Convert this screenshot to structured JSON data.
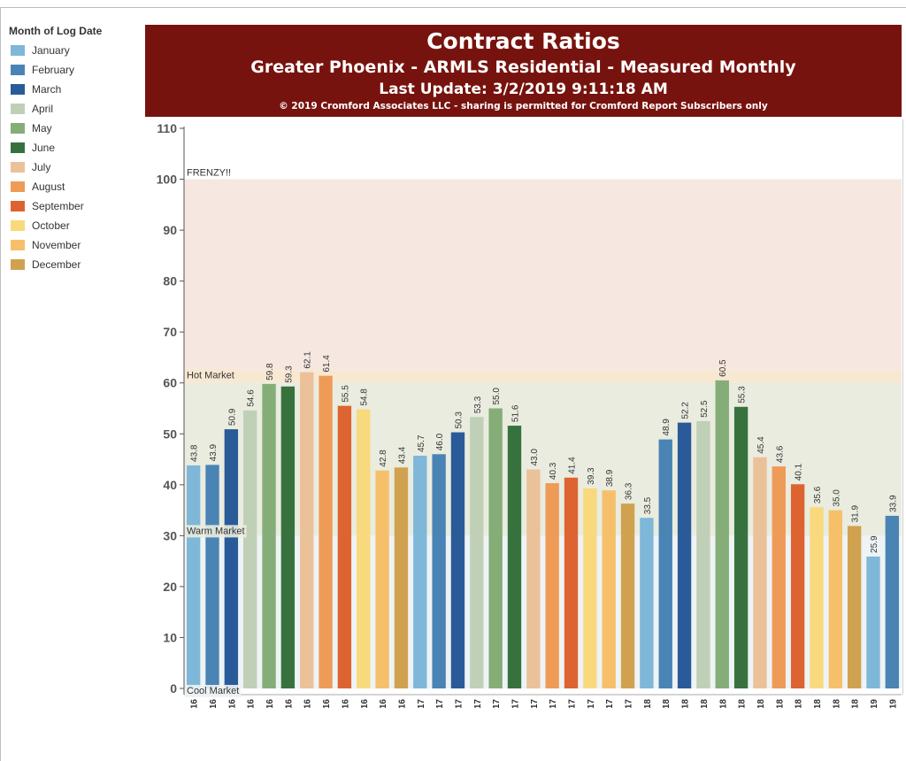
{
  "legend": {
    "title": "Month of Log Date",
    "items": [
      {
        "label": "January",
        "color": "#7fb7d9"
      },
      {
        "label": "February",
        "color": "#4a84b5"
      },
      {
        "label": "March",
        "color": "#2b5a99"
      },
      {
        "label": "April",
        "color": "#c0d0b7"
      },
      {
        "label": "May",
        "color": "#85ad78"
      },
      {
        "label": "June",
        "color": "#37723e"
      },
      {
        "label": "July",
        "color": "#ebc19a"
      },
      {
        "label": "August",
        "color": "#ef9b58"
      },
      {
        "label": "September",
        "color": "#dd6430"
      },
      {
        "label": "October",
        "color": "#f8d97d"
      },
      {
        "label": "November",
        "color": "#f6c06a"
      },
      {
        "label": "December",
        "color": "#d0a250"
      }
    ]
  },
  "header": {
    "title": "Contract Ratios",
    "subtitle": "Greater Phoenix - ARMLS Residential - Measured Monthly",
    "update": "Last Update: 3/2/2019 9:11:18 AM",
    "copyright": "© 2019 Cromford Associates LLC - sharing is permitted for Cromford Report Subscribers only",
    "background": "#77130e"
  },
  "chart_data": {
    "type": "bar",
    "categories": [
      "Jan 16",
      "Feb 16",
      "Mar 16",
      "Apr 16",
      "May 16",
      "Jun 16",
      "Jul 16",
      "Aug 16",
      "Sep 16",
      "Oct 16",
      "Nov 16",
      "Dec 16",
      "Jan 17",
      "Feb 17",
      "Mar 17",
      "Apr 17",
      "May 17",
      "Jun 17",
      "Jul 17",
      "Aug 17",
      "Sep 17",
      "Oct 17",
      "Nov 17",
      "Dec 17",
      "Jan 18",
      "Feb 18",
      "Mar 18",
      "Apr 18",
      "May 18",
      "Jun 18",
      "Jul 18",
      "Aug 18",
      "Sep 18",
      "Oct 18",
      "Nov 18",
      "Dec 18",
      "Jan 19",
      "Feb 19"
    ],
    "values": [
      43.8,
      43.9,
      50.9,
      54.6,
      59.8,
      59.3,
      62.1,
      61.4,
      55.5,
      54.8,
      42.8,
      43.4,
      45.7,
      46.0,
      50.3,
      53.3,
      55.0,
      51.6,
      43.0,
      40.3,
      41.4,
      39.3,
      38.9,
      36.3,
      33.5,
      48.9,
      52.2,
      52.5,
      60.5,
      55.3,
      45.4,
      43.6,
      40.1,
      35.6,
      35.0,
      31.9,
      25.9,
      33.9
    ],
    "value_labels": [
      "43.8",
      "43.9",
      "50.9",
      "54.6",
      "59.8",
      "59.3",
      "62.1",
      "61.4",
      "55.5",
      "54.8",
      "42.8",
      "43.4",
      "45.7",
      "46.0",
      "50.3",
      "53.3",
      "55.0",
      "51.6",
      "43.0",
      "40.3",
      "41.4",
      "39.3",
      "38.9",
      "36.3",
      "33.5",
      "48.9",
      "52.2",
      "52.5",
      "60.5",
      "55.3",
      "45.4",
      "43.6",
      "40.1",
      "35.6",
      "35.0",
      "31.9",
      "25.9",
      "33.9"
    ],
    "ylim": [
      0,
      110
    ],
    "yticks": [
      "0",
      "10",
      "20",
      "30",
      "40",
      "50",
      "60",
      "70",
      "80",
      "90",
      "100",
      "110"
    ],
    "grid": false,
    "legend_position": "left",
    "bands": [
      {
        "label": "FRENZY!!",
        "from": 62.5,
        "to": 100,
        "color": "#f6e7e0"
      },
      {
        "label": "Hot Market",
        "from": 60,
        "to": 62.5,
        "color": "#f7e8d2"
      },
      {
        "label": "Warm Market",
        "from": 30,
        "to": 60,
        "color": "#e9ecdf"
      },
      {
        "label": "Cool Market",
        "from": 0,
        "to": 30,
        "color": "#eef3f5"
      }
    ]
  }
}
